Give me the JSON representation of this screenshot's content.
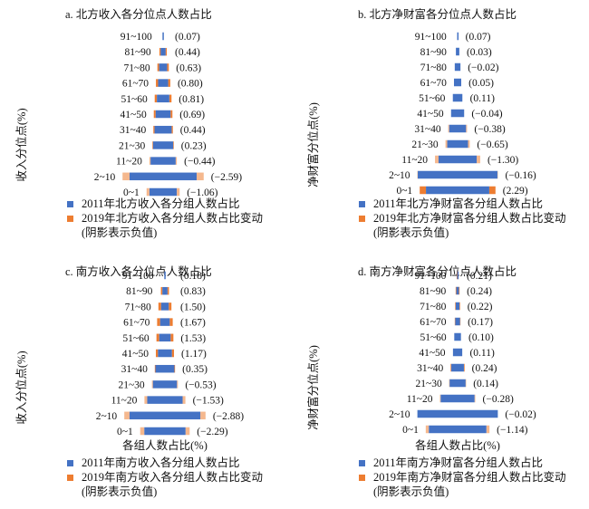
{
  "colors": {
    "bar": "#4472c4",
    "change": "#ed7d31"
  },
  "chart_data": [
    {
      "type": "bar",
      "orientation": "horizontal-pyramid",
      "title": "a. 北方收入各分位点人数占比",
      "ylabel": "收入分位点(%)",
      "xlabel": "",
      "categories": [
        "91~100",
        "81~90",
        "71~80",
        "61~70",
        "51~60",
        "41~50",
        "31~40",
        "21~30",
        "11~20",
        "2~10",
        "0~1"
      ],
      "series": [
        {
          "name": "2011年北方收入各分组人数占比",
          "values": [
            0.9,
            3.6,
            5.8,
            7.3,
            9.0,
            10.8,
            12.4,
            14.6,
            18.2,
            48.7,
            19.8
          ]
        },
        {
          "name": "2019年北方收入各分组人数占比变动(阴影表示负值)",
          "values": [
            0.07,
            0.44,
            0.63,
            0.8,
            0.81,
            0.69,
            0.44,
            0.23,
            -0.44,
            -2.59,
            -1.06
          ]
        }
      ],
      "value_labels": [
        "(0.07)",
        "(0.44)",
        "(0.63)",
        "(0.80)",
        "(0.81)",
        "(0.69)",
        "(0.44)",
        "(0.23)",
        "(−0.44)",
        "(−2.59)",
        "(−1.06)"
      ],
      "legend": [
        "2011年北方收入各分组人数占比",
        "2019年北方收入各分组人数占比变动",
        "(阴影表示负值)"
      ]
    },
    {
      "type": "bar",
      "orientation": "horizontal-pyramid",
      "title": "b. 北方净财富各分位点人数占比",
      "ylabel": "净财富分位点(%)",
      "xlabel": "",
      "categories": [
        "91~100",
        "81~90",
        "71~80",
        "61~70",
        "51~60",
        "41~50",
        "31~40",
        "21~30",
        "11~20",
        "2~10",
        "0~1"
      ],
      "series": [
        {
          "name": "2011年北方净财富各分组人数占比",
          "values": [
            0.6,
            2.4,
            4.0,
            5.1,
            6.7,
            9.2,
            11.8,
            14.6,
            26.8,
            56.0,
            44.5
          ]
        },
        {
          "name": "2019年北方净财富各分组人数占比变动(阴影表示负值)",
          "values": [
            0.07,
            0.03,
            -0.02,
            0.05,
            0.11,
            -0.04,
            -0.38,
            -0.65,
            -1.3,
            -0.16,
            2.29
          ]
        }
      ],
      "value_labels": [
        "(0.07)",
        "(0.03)",
        "(−0.02)",
        "(0.05)",
        "(0.11)",
        "(−0.04)",
        "(−0.38)",
        "(−0.65)",
        "(−1.30)",
        "(−0.16)",
        "(2.29)"
      ],
      "legend": [
        "2011年北方净财富各分组人数占比",
        "2019年北方净财富各分组人数占比变动",
        "(阴影表示负值)"
      ]
    },
    {
      "type": "bar",
      "orientation": "horizontal-pyramid",
      "title": "c. 南方收入各分位点人数占比",
      "ylabel": "收入分位点(%)",
      "xlabel": "各组人数占比(%)",
      "categories": [
        "91~100",
        "81~90",
        "71~80",
        "61~70",
        "51~60",
        "41~50",
        "31~40",
        "21~30",
        "11~20",
        "2~10",
        "0~1"
      ],
      "series": [
        {
          "name": "2011年南方收入各分组人数占比",
          "values": [
            0.9,
            3.6,
            5.4,
            6.8,
            8.1,
            9.9,
            13.5,
            17.1,
            25.2,
            50.4,
            29.3
          ]
        },
        {
          "name": "2019年南方收入各分组人数占比变动(阴影表示负值)",
          "values": [
            0.18,
            0.83,
            1.5,
            1.67,
            1.53,
            1.17,
            0.35,
            -0.53,
            -1.53,
            -2.88,
            -2.29
          ]
        }
      ],
      "value_labels": [
        "(0.18)",
        "(0.83)",
        "(1.50)",
        "(1.67)",
        "(1.53)",
        "(1.17)",
        "(0.35)",
        "(−0.53)",
        "(−1.53)",
        "(−2.88)",
        "(−2.29)"
      ],
      "legend": [
        "2011年南方收入各分组人数占比",
        "2019年南方收入各分组人数占比变动",
        "(阴影表示负值)"
      ]
    },
    {
      "type": "bar",
      "orientation": "horizontal-pyramid",
      "title": "d. 南方净财富各分位点人数占比",
      "ylabel": "净财富分位点(%)",
      "xlabel": "各组人数占比(%)",
      "categories": [
        "91~100",
        "81~90",
        "71~80",
        "61~70",
        "51~60",
        "41~50",
        "31~40",
        "21~30",
        "11~20",
        "2~10",
        "0~1"
      ],
      "series": [
        {
          "name": "2011年南方净财富各分组人数占比",
          "values": [
            0.6,
            2.0,
            2.9,
            3.7,
            5.2,
            7.2,
            9.8,
            12.4,
            26.3,
            62.5,
            44.7
          ]
        },
        {
          "name": "2019年南方净财富各分组人数占比变动(阴影表示负值)",
          "values": [
            0.21,
            0.24,
            0.22,
            0.17,
            0.1,
            0.11,
            0.24,
            0.14,
            -0.28,
            -0.02,
            -1.14
          ]
        }
      ],
      "value_labels": [
        "(0.21)",
        "(0.24)",
        "(0.22)",
        "(0.17)",
        "(0.10)",
        "(0.11)",
        "(0.24)",
        "(0.14)",
        "(−0.28)",
        "(−0.02)",
        "(−1.14)"
      ],
      "legend": [
        "2011年南方净财富各分组人数占比",
        "2019年南方净财富各分组人数占比变动",
        "(阴影表示负值)"
      ]
    }
  ]
}
